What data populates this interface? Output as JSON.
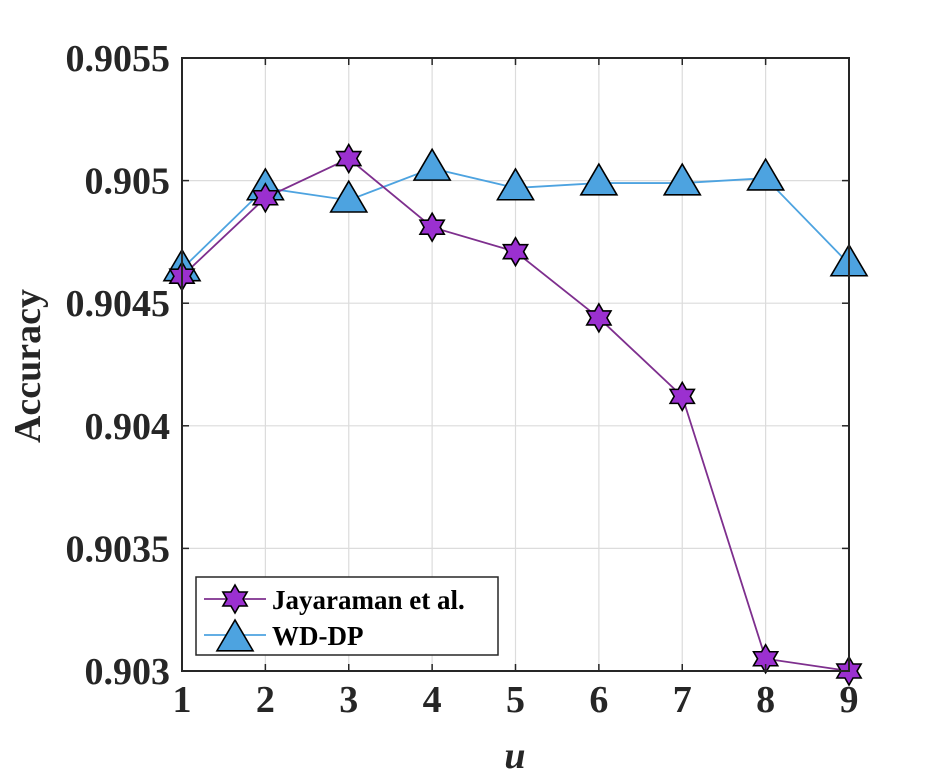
{
  "chart_data": {
    "type": "line",
    "xlabel": "u",
    "ylabel": "Accuracy",
    "x": [
      1,
      2,
      3,
      4,
      5,
      6,
      7,
      8,
      9
    ],
    "xticks": [
      "1",
      "2",
      "3",
      "4",
      "5",
      "6",
      "7",
      "8",
      "9"
    ],
    "xlim": [
      1,
      9
    ],
    "ylim": [
      0.903,
      0.9055
    ],
    "yticks": [
      0.903,
      0.9035,
      0.904,
      0.9045,
      0.905,
      0.9055
    ],
    "ytick_labels": [
      "0.903",
      "0.9035",
      "0.904",
      "0.9045",
      "0.905",
      "0.9055"
    ],
    "grid": true,
    "legend_position": "bottom-left",
    "series": [
      {
        "name": "Jayaraman et al.",
        "marker": "hexagram",
        "color": "#7E2F8E",
        "marker_fill": "#9B30D0",
        "values": [
          0.90461,
          0.90493,
          0.90509,
          0.90481,
          0.90471,
          0.90444,
          0.90412,
          0.90305,
          0.903
        ]
      },
      {
        "name": "WD-DP",
        "marker": "triangle",
        "color": "#4DA3E0",
        "marker_fill": "#4DA3E0",
        "values": [
          0.90464,
          0.90497,
          0.90492,
          0.90505,
          0.90497,
          0.90499,
          0.90499,
          0.90501,
          0.90466
        ]
      }
    ]
  }
}
